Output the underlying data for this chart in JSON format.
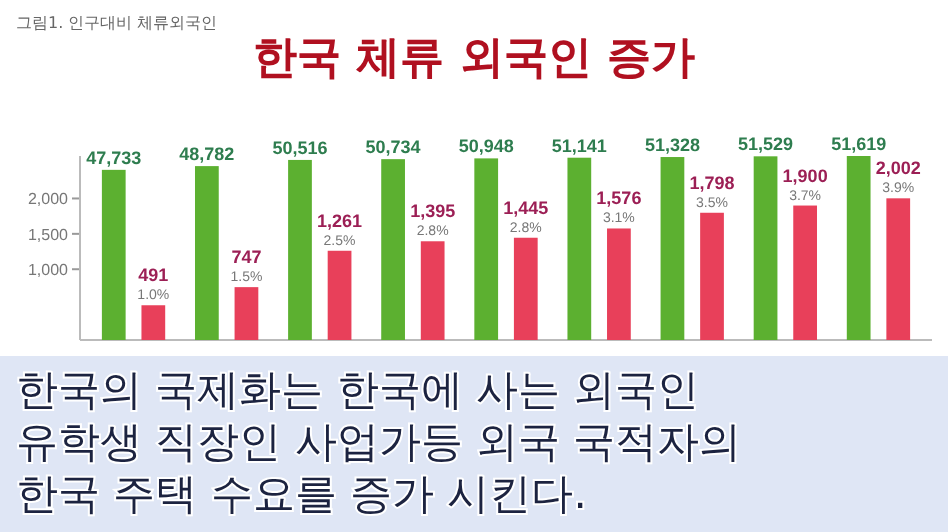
{
  "chart_data": {
    "type": "bar",
    "title": "한국 체류 외국인 증가",
    "subtitle": "그림1. 인구대비 체류외국인",
    "categories": [
      null,
      null,
      null,
      null,
      null,
      null,
      null,
      null,
      null
    ],
    "series": [
      {
        "name": null,
        "color": "#5cb030",
        "axis": "y2",
        "values": [
          47733,
          48782,
          50516,
          50734,
          50948,
          51141,
          51328,
          51529,
          51619
        ],
        "value_labels": [
          "47,733",
          "48,782",
          "50,516",
          "50,734",
          "50,948",
          "51,141",
          "51,328",
          "51,529",
          "51,619"
        ]
      },
      {
        "name": null,
        "color": "#e8405a",
        "values": [
          491,
          747,
          1261,
          1395,
          1445,
          1576,
          1798,
          1900,
          2002
        ],
        "value_labels": [
          "491",
          "747",
          "1,261",
          "1,395",
          "1,445",
          "1,576",
          "1,798",
          "1,900",
          "2,002"
        ]
      }
    ],
    "ylim": [
      0,
      2600
    ],
    "yticks": [
      {
        "value": 1000,
        "label": "1,000"
      },
      {
        "value": 1500,
        "label": "1,500"
      },
      {
        "value": 2000,
        "label": "2,000"
      }
    ],
    "tick_labels": "y",
    "annotations": [
      {
        "text": "1.0%",
        "y": 491
      },
      {
        "text": "1.5%",
        "y": 747
      },
      {
        "text": "2.5%",
        "y": 1261
      },
      {
        "text": "2.8%",
        "y": 1395
      },
      {
        "text": "2.8%",
        "y": 1445
      },
      {
        "text": "3.1%",
        "y": 1576
      },
      {
        "text": "3.5%",
        "y": 1798
      },
      {
        "text": "3.7%",
        "y": 1900
      },
      {
        "text": "3.9%",
        "y": 2002
      },
      "한국의 국제화는 한국에 사는 외국인",
      "유학생 직장인 사업가등 외국 국적자의",
      "한국 주택 수요를 증가 시킨다."
    ]
  }
}
